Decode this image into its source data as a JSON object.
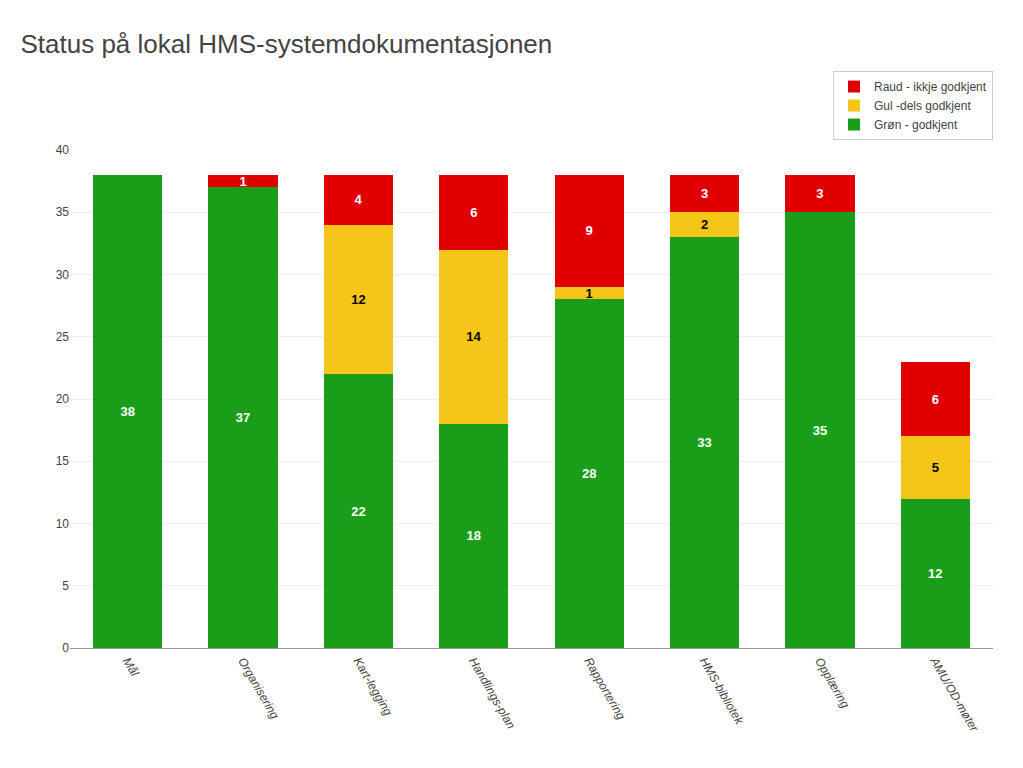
{
  "chart_data": {
    "type": "bar",
    "stacked": true,
    "title": "Status på lokal HMS-systemdokumentasjonen",
    "categories": [
      "Mål",
      "Organisering",
      "Kart-legging",
      "Handlings-plan",
      "Rapportering",
      "HMS-bibliotek",
      "Opplæring",
      "AMU/OD-møter"
    ],
    "series": [
      {
        "name": "Grøn - godkjent",
        "color": "#1a9e1a",
        "values": [
          38,
          37,
          22,
          18,
          28,
          33,
          35,
          12
        ]
      },
      {
        "name": "Gul -dels godkjent",
        "color": "#f5c518",
        "values": [
          0,
          0,
          12,
          14,
          1,
          2,
          0,
          5
        ]
      },
      {
        "name": "Raud - ikkje godkjent",
        "color": "#e00000",
        "values": [
          0,
          1,
          4,
          6,
          9,
          3,
          3,
          6
        ]
      }
    ],
    "ylim": [
      0,
      40
    ],
    "yticks": [
      0,
      5,
      10,
      15,
      20,
      25,
      30,
      35,
      40
    ],
    "grid": true,
    "legend": "upper right",
    "data_labels": true
  }
}
